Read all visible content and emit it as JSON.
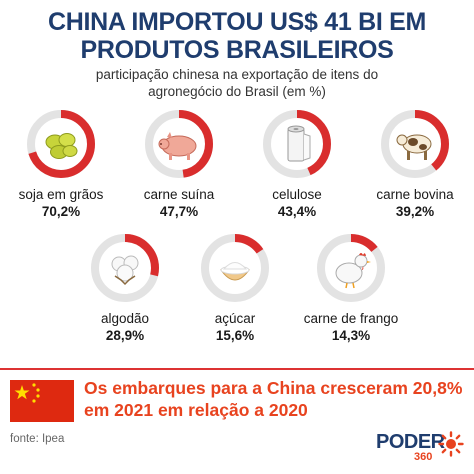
{
  "title": "CHINA IMPORTOU US$ 41 BI EM PRODUTOS BRASILEIROS",
  "subtitle_line1": "participação chinesa na exportação de itens do",
  "subtitle_line2": "agronegócio do Brasil (em %)",
  "chart_data": {
    "type": "pie",
    "title": "CHINA IMPORTOU US$ 41 BI EM PRODUTOS BRASILEIROS",
    "subtitle": "participação chinesa na exportação de itens do agronegócio do Brasil (em %)",
    "categories": [
      "soja em grãos",
      "carne suína",
      "celulose",
      "carne bovina",
      "algodão",
      "açúcar",
      "carne de frango"
    ],
    "values": [
      70.2,
      47.7,
      43.4,
      39.2,
      28.9,
      15.6,
      14.3
    ],
    "value_labels": [
      "70,2%",
      "47,7%",
      "43,4%",
      "39,2%",
      "28,9%",
      "15,6%",
      "14,3%"
    ],
    "icons": [
      "soybeans-icon",
      "pig-icon",
      "paper-roll-icon",
      "cow-icon",
      "cotton-icon",
      "sugar-bowl-icon",
      "chicken-icon"
    ],
    "colors": {
      "filled": "#d92d2d",
      "remaining": "#e3e3e3"
    }
  },
  "note": "Os embarques para a China cresceram 20,8% em 2021 em relação a 2020",
  "source": "fonte: Ipea",
  "logo": {
    "main": "PODER",
    "sub": "360"
  },
  "colors": {
    "title": "#1f3d6e",
    "accent": "#e8431f",
    "flag_red": "#de2910",
    "flag_star": "#ffde00"
  }
}
